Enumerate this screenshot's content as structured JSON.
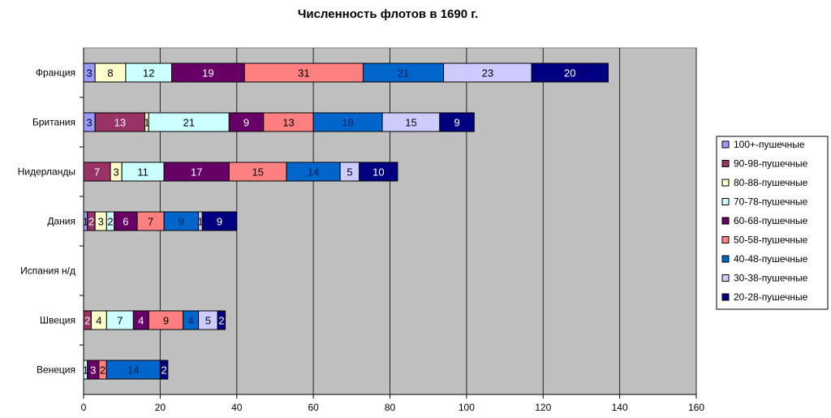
{
  "chart_data": {
    "type": "bar",
    "orientation": "horizontal",
    "stacked": true,
    "title": "Численность флотов в 1690 г.",
    "categories": [
      "Франция",
      "Британия",
      "Нидерланды",
      "Дания",
      "Испания н/д",
      "Швеция",
      "Венеция"
    ],
    "series": [
      {
        "name": "100+-пушечные",
        "color": "#9999FF",
        "values": [
          3,
          3,
          0,
          1,
          0,
          0,
          0
        ]
      },
      {
        "name": "90-98-пушечные",
        "color": "#993366",
        "values": [
          0,
          13,
          7,
          2,
          0,
          2,
          0
        ]
      },
      {
        "name": "80-88-пушечные",
        "color": "#FFFFCC",
        "values": [
          8,
          1,
          3,
          3,
          0,
          4,
          0
        ]
      },
      {
        "name": "70-78-пушечные",
        "color": "#CCFFFF",
        "values": [
          12,
          21,
          11,
          2,
          0,
          7,
          1
        ]
      },
      {
        "name": "60-68-пушечные",
        "color": "#660066",
        "values": [
          19,
          9,
          17,
          6,
          0,
          4,
          3
        ]
      },
      {
        "name": "50-58-пушечные",
        "color": "#FF8080",
        "values": [
          31,
          13,
          15,
          7,
          0,
          9,
          2
        ]
      },
      {
        "name": "40-48-пушечные",
        "color": "#0066CC",
        "values": [
          21,
          18,
          14,
          9,
          0,
          4,
          14
        ]
      },
      {
        "name": "30-38-пушечные",
        "color": "#CCCCFF",
        "values": [
          23,
          15,
          5,
          1,
          0,
          5,
          0
        ]
      },
      {
        "name": "20-28-пушечные",
        "color": "#000080",
        "values": [
          20,
          9,
          10,
          9,
          0,
          2,
          2
        ]
      }
    ],
    "xlim": [
      0,
      160
    ],
    "xticks": [
      0,
      20,
      40,
      60,
      80,
      100,
      120,
      140,
      160
    ],
    "grid": true,
    "legend": "right"
  }
}
